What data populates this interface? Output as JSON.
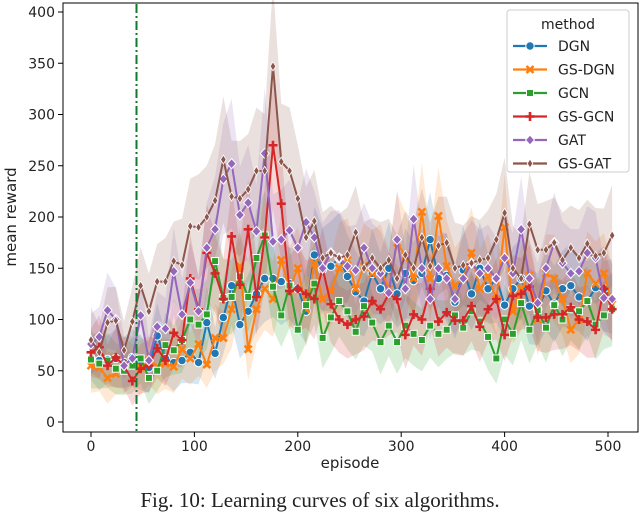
{
  "chart_data": {
    "type": "line",
    "xlabel": "episode",
    "ylabel": "mean reward",
    "xlim": [
      -25,
      515
    ],
    "ylim": [
      0,
      405
    ],
    "xticks": [
      0,
      100,
      200,
      300,
      400,
      500
    ],
    "yticks": [
      0,
      50,
      100,
      150,
      200,
      250,
      300,
      350,
      400
    ],
    "x_step": 8,
    "vertical_line": {
      "x": 44,
      "style": "dash-dot",
      "color": "#117a2e"
    },
    "legend": {
      "title": "method",
      "placement": "top-right"
    },
    "confidence_band": true,
    "grid": false,
    "series": [
      {
        "name": "DGN",
        "color": "#1f77b4",
        "marker": "circle",
        "values": [
          62,
          60,
          61,
          62,
          58,
          63,
          57,
          53,
          84,
          62,
          58,
          60,
          68,
          58,
          97,
          67,
          102,
          133,
          95,
          108,
          125,
          140,
          140,
          137,
          135,
          130,
          108,
          163,
          149,
          152,
          160,
          142,
          127,
          118,
          145,
          130,
          150,
          125,
          145,
          138,
          145,
          178,
          140,
          143,
          117,
          148,
          125,
          150,
          130,
          140,
          114,
          130,
          140,
          113,
          110,
          128,
          115,
          130,
          133,
          122,
          118,
          131,
          130,
          120
        ]
      },
      {
        "name": "GS-DGN",
        "color": "#ff7f0e",
        "marker": "x",
        "values": [
          55,
          53,
          43,
          47,
          56,
          55,
          53,
          60,
          54,
          57,
          54,
          71,
          62,
          76,
          56,
          82,
          82,
          110,
          152,
          71,
          110,
          130,
          120,
          158,
          130,
          150,
          110,
          155,
          120,
          128,
          150,
          158,
          130,
          152,
          145,
          150,
          130,
          175,
          162,
          140,
          205,
          140,
          201,
          152,
          133,
          140,
          165,
          130,
          142,
          120,
          190,
          108,
          130,
          143,
          100,
          145,
          140,
          120,
          90,
          100,
          145,
          135,
          145,
          115
        ]
      },
      {
        "name": "GCN",
        "color": "#2ca02c",
        "marker": "square",
        "values": [
          61,
          57,
          60,
          52,
          50,
          55,
          62,
          43,
          50,
          75,
          70,
          80,
          100,
          95,
          105,
          157,
          121,
          122,
          142,
          122,
          160,
          182,
          132,
          104,
          133,
          90,
          114,
          135,
          82,
          102,
          118,
          108,
          88,
          113,
          97,
          78,
          94,
          78,
          94,
          86,
          80,
          94,
          86,
          90,
          104,
          92,
          108,
          98,
          83,
          62,
          100,
          86,
          116,
          90,
          109,
          92,
          114,
          100,
          110,
          108,
          118,
          95,
          104,
          110
        ]
      },
      {
        "name": "GS-GCN",
        "color": "#d62728",
        "marker": "plus",
        "values": [
          68,
          73,
          55,
          63,
          55,
          40,
          52,
          55,
          72,
          60,
          87,
          80,
          140,
          110,
          165,
          145,
          120,
          181,
          134,
          188,
          122,
          180,
          270,
          213,
          128,
          130,
          125,
          120,
          150,
          115,
          100,
          95,
          100,
          103,
          118,
          110,
          125,
          120,
          85,
          105,
          100,
          130,
          98,
          107,
          99,
          99,
          113,
          93,
          110,
          120,
          85,
          123,
          125,
          132,
          102,
          102,
          105,
          105,
          112,
          100,
          98,
          90,
          130,
          110
        ]
      },
      {
        "name": "GAT",
        "color": "#9467bd",
        "marker": "diamond",
        "values": [
          76,
          83,
          109,
          100,
          55,
          62,
          104,
          60,
          93,
          91,
          147,
          105,
          136,
          108,
          170,
          188,
          237,
          252,
          202,
          214,
          186,
          262,
          176,
          178,
          187,
          170,
          195,
          180,
          150,
          165,
          160,
          152,
          148,
          170,
          150,
          145,
          126,
          178,
          130,
          198,
          150,
          120,
          150,
          140,
          120,
          140,
          155,
          145,
          150,
          140,
          160,
          145,
          188,
          140,
          116,
          150,
          175,
          155,
          145,
          147,
          165,
          160,
          121,
          120
        ]
      },
      {
        "name": "GS-GAT",
        "color": "#8c564b",
        "marker": "thin-diamond",
        "values": [
          80,
          68,
          97,
          99,
          70,
          98,
          133,
          108,
          137,
          137,
          157,
          153,
          191,
          190,
          200,
          216,
          256,
          220,
          218,
          227,
          245,
          245,
          347,
          254,
          245,
          218,
          180,
          196,
          160,
          165,
          160,
          163,
          185,
          150,
          160,
          150,
          158,
          140,
          163,
          150,
          180,
          152,
          172,
          175,
          150,
          153,
          155,
          158,
          160,
          178,
          204,
          150,
          140,
          193,
          168,
          168,
          175,
          158,
          170,
          160,
          174,
          162,
          165,
          182
        ]
      }
    ]
  },
  "caption": "Fig. 10: Learning curves of six algorithms."
}
